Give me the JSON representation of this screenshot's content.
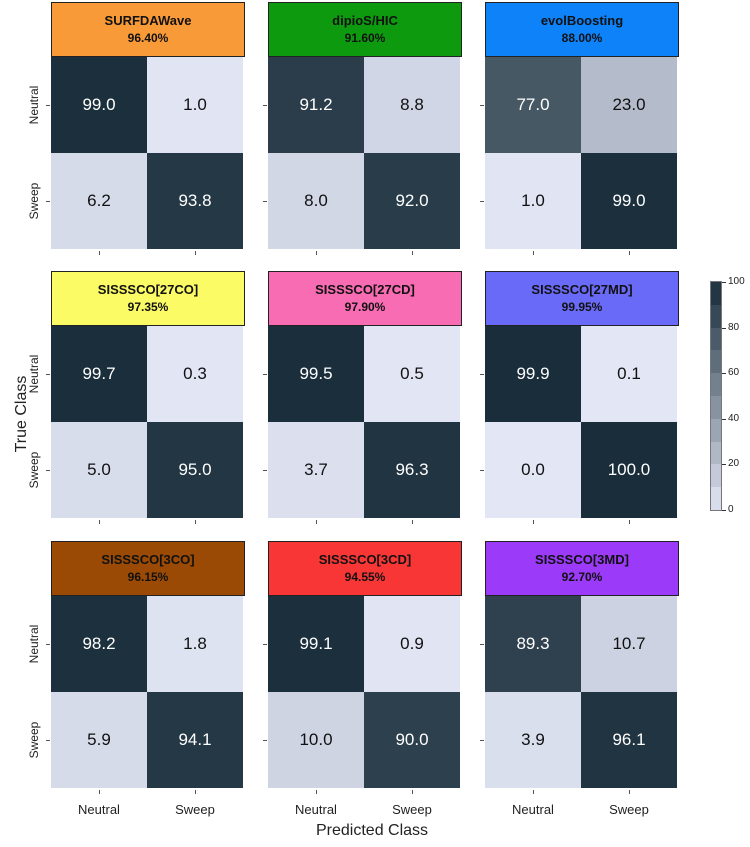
{
  "chart_data": {
    "type": "heatmap",
    "xlabel": "Predicted Class",
    "ylabel": "True Class",
    "classes": [
      "Neutral",
      "Sweep"
    ],
    "colorbar": {
      "range": [
        0,
        100
      ],
      "ticks": [
        "0",
        "20",
        "40",
        "60",
        "80",
        "100"
      ]
    },
    "panels": [
      {
        "name": "SURFDAWave",
        "accuracy": "96.40%",
        "title_color": "#F99A38",
        "matrix": [
          [
            99.0,
            1.0
          ],
          [
            6.2,
            93.8
          ]
        ],
        "labels": [
          [
            "99.0",
            "1.0"
          ],
          [
            "6.2",
            "93.8"
          ]
        ]
      },
      {
        "name": "dipioS/HIC",
        "accuracy": "91.60%",
        "title_color": "#0E9A0E",
        "matrix": [
          [
            91.2,
            8.8
          ],
          [
            8.0,
            92.0
          ]
        ],
        "labels": [
          [
            "91.2",
            "8.8"
          ],
          [
            "8.0",
            "92.0"
          ]
        ]
      },
      {
        "name": "evolBoosting",
        "accuracy": "88.00%",
        "title_color": "#0D82F9",
        "matrix": [
          [
            77.0,
            23.0
          ],
          [
            1.0,
            99.0
          ]
        ],
        "labels": [
          [
            "77.0",
            "23.0"
          ],
          [
            "1.0",
            "99.0"
          ]
        ]
      },
      {
        "name": "SISSSCO[27CO]",
        "accuracy": "97.35%",
        "title_color": "#FBFB66",
        "matrix": [
          [
            99.7,
            0.3
          ],
          [
            5.0,
            95.0
          ]
        ],
        "labels": [
          [
            "99.7",
            "0.3"
          ],
          [
            "5.0",
            "95.0"
          ]
        ]
      },
      {
        "name": "SISSSCO[27CD]",
        "accuracy": "97.90%",
        "title_color": "#F76CB2",
        "matrix": [
          [
            99.5,
            0.5
          ],
          [
            3.7,
            96.3
          ]
        ],
        "labels": [
          [
            "99.5",
            "0.5"
          ],
          [
            "3.7",
            "96.3"
          ]
        ]
      },
      {
        "name": "SISSSCO[27MD]",
        "accuracy": "99.95%",
        "title_color": "#6A6AF8",
        "matrix": [
          [
            99.9,
            0.1
          ],
          [
            0.0,
            100.0
          ]
        ],
        "labels": [
          [
            "99.9",
            "0.1"
          ],
          [
            "0.0",
            "100.0"
          ]
        ]
      },
      {
        "name": "SISSSCO[3CO]",
        "accuracy": "96.15%",
        "title_color": "#9A4A04",
        "matrix": [
          [
            98.2,
            1.8
          ],
          [
            5.9,
            94.1
          ]
        ],
        "labels": [
          [
            "98.2",
            "1.8"
          ],
          [
            "5.9",
            "94.1"
          ]
        ]
      },
      {
        "name": "SISSSCO[3CD]",
        "accuracy": "94.55%",
        "title_color": "#F93636",
        "matrix": [
          [
            99.1,
            0.9
          ],
          [
            10.0,
            90.0
          ]
        ],
        "labels": [
          [
            "99.1",
            "0.9"
          ],
          [
            "10.0",
            "90.0"
          ]
        ]
      },
      {
        "name": "SISSSCO[3MD]",
        "accuracy": "92.70%",
        "title_color": "#9B3AF8",
        "matrix": [
          [
            89.3,
            10.7
          ],
          [
            3.9,
            96.1
          ]
        ],
        "labels": [
          [
            "89.3",
            "10.7"
          ],
          [
            "3.9",
            "96.1"
          ]
        ]
      }
    ]
  }
}
